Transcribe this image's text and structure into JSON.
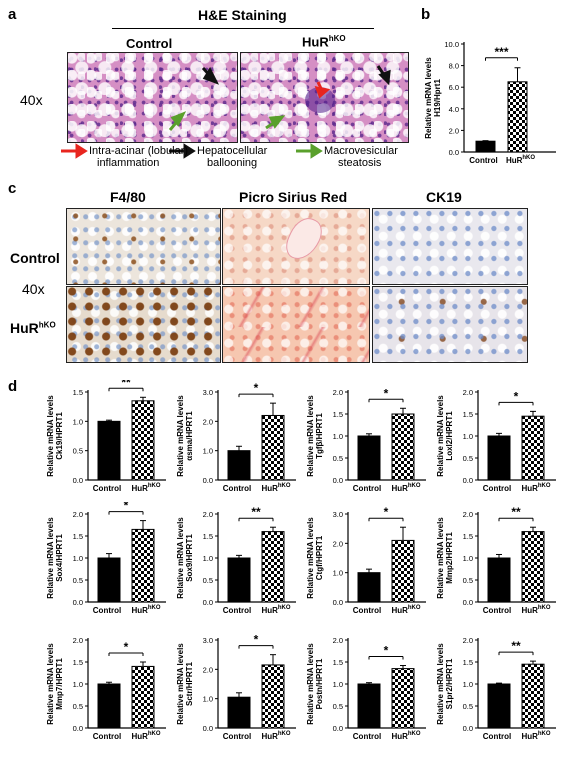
{
  "panels": {
    "a": {
      "label": "a",
      "title": "H&E Staining",
      "col_control": "Control",
      "col_ko_base": "HuR",
      "col_ko_sup": "hKO",
      "magnification": "40x",
      "legend": [
        {
          "line1": "Intra-acinar (lobular)",
          "line2": "inflammation",
          "color": "#e8251f"
        },
        {
          "line1": "Hepatocellular",
          "line2": "ballooning",
          "color": "#111111"
        },
        {
          "line1": "Macrovesicular",
          "line2": "steatosis",
          "color": "#5aa02c"
        }
      ]
    },
    "b": {
      "label": "b"
    },
    "c": {
      "label": "c",
      "col1": "F4/80",
      "col2": "Picro Sirius Red",
      "col3": "CK19",
      "row_control": "Control",
      "row_ko_base": "HuR",
      "row_ko_sup": "hKO",
      "magnification": "40x"
    },
    "d": {
      "label": "d"
    }
  },
  "chart_data": [
    {
      "panel": "b",
      "type": "bar",
      "ylabel": "Relative mRNA levels H19/Hprt1",
      "categories": [
        "Control",
        "HuR hKO"
      ],
      "values": [
        1.0,
        6.5
      ],
      "errors": [
        0.05,
        1.3
      ],
      "ylim": [
        0,
        10
      ],
      "yticks": [
        "0.0",
        "2.0",
        "4.0",
        "6.0",
        "8.0",
        "10.0"
      ],
      "tickvals": [
        0,
        2,
        4,
        6,
        8,
        10
      ],
      "significance": "***"
    },
    {
      "panel": "d",
      "type": "bar",
      "ylabel": "Relative mRNA levels Ck19/HPRT1",
      "categories": [
        "Control",
        "HuR hKO"
      ],
      "values": [
        1.0,
        1.35
      ],
      "errors": [
        0.02,
        0.06
      ],
      "ylim": [
        0,
        1.5
      ],
      "yticks": [
        "0.0",
        "0.5",
        "1.0",
        "1.5"
      ],
      "tickvals": [
        0,
        0.5,
        1,
        1.5
      ],
      "significance": "**"
    },
    {
      "panel": "d",
      "type": "bar",
      "ylabel": "Relative mRNA levels αsma/HPRT1",
      "categories": [
        "Control",
        "HuR hKO"
      ],
      "values": [
        1.0,
        2.2
      ],
      "errors": [
        0.15,
        0.42
      ],
      "ylim": [
        0,
        3.0
      ],
      "yticks": [
        "0.0",
        "1.0",
        "2.0",
        "3.0"
      ],
      "tickvals": [
        0,
        1,
        2,
        3
      ],
      "significance": "*"
    },
    {
      "panel": "d",
      "type": "bar",
      "ylabel": "Relative mRNA levels Tgfβ/HPRT1",
      "categories": [
        "Control",
        "HuR hKO"
      ],
      "values": [
        1.0,
        1.5
      ],
      "errors": [
        0.05,
        0.13
      ],
      "ylim": [
        0,
        2.0
      ],
      "yticks": [
        "0.0",
        "0.5",
        "1.0",
        "1.5",
        "2.0"
      ],
      "tickvals": [
        0,
        0.5,
        1,
        1.5,
        2
      ],
      "significance": "*"
    },
    {
      "panel": "d",
      "type": "bar",
      "ylabel": "Relative mRNA levels Loxl2/HPRT1",
      "categories": [
        "Control",
        "HuR hKO"
      ],
      "values": [
        1.0,
        1.45
      ],
      "errors": [
        0.06,
        0.11
      ],
      "ylim": [
        0,
        2.0
      ],
      "yticks": [
        "0.0",
        "0.5",
        "1.0",
        "1.5",
        "2.0"
      ],
      "tickvals": [
        0,
        0.5,
        1,
        1.5,
        2
      ],
      "significance": "*"
    },
    {
      "panel": "d",
      "type": "bar",
      "ylabel": "Relative mRNA levels Sox4/HPRT1",
      "categories": [
        "Control",
        "HuR hKO"
      ],
      "values": [
        1.0,
        1.65
      ],
      "errors": [
        0.1,
        0.2
      ],
      "ylim": [
        0,
        2.0
      ],
      "yticks": [
        "0.0",
        "0.5",
        "1.0",
        "1.5",
        "2.0"
      ],
      "tickvals": [
        0,
        0.5,
        1,
        1.5,
        2
      ],
      "significance": "*"
    },
    {
      "panel": "d",
      "type": "bar",
      "ylabel": "Relative mRNA levels Sox9/HPRT1",
      "categories": [
        "Control",
        "HuR hKO"
      ],
      "values": [
        1.0,
        1.6
      ],
      "errors": [
        0.06,
        0.1
      ],
      "ylim": [
        0,
        2.0
      ],
      "yticks": [
        "0.0",
        "0.5",
        "1.0",
        "1.5",
        "2.0"
      ],
      "tickvals": [
        0,
        0.5,
        1,
        1.5,
        2
      ],
      "significance": "**"
    },
    {
      "panel": "d",
      "type": "bar",
      "ylabel": "Relative mRNA levels Ctgf/HPRT1",
      "categories": [
        "Control",
        "HuR hKO"
      ],
      "values": [
        1.0,
        2.1
      ],
      "errors": [
        0.12,
        0.45
      ],
      "ylim": [
        0,
        3.0
      ],
      "yticks": [
        "0.0",
        "1.0",
        "2.0",
        "3.0"
      ],
      "tickvals": [
        0,
        1,
        2,
        3
      ],
      "significance": "*"
    },
    {
      "panel": "d",
      "type": "bar",
      "ylabel": "Relative mRNA levels Mmp2/HPRT1",
      "categories": [
        "Control",
        "HuR hKO"
      ],
      "values": [
        1.0,
        1.6
      ],
      "errors": [
        0.08,
        0.1
      ],
      "ylim": [
        0,
        2.0
      ],
      "yticks": [
        "0.0",
        "0.5",
        "1.0",
        "1.5",
        "2.0"
      ],
      "tickvals": [
        0,
        0.5,
        1,
        1.5,
        2
      ],
      "significance": "**"
    },
    {
      "panel": "d",
      "type": "bar",
      "ylabel": "Relative mRNA levels Mmp7/HPRT1",
      "categories": [
        "Control",
        "HuR hKO"
      ],
      "values": [
        1.0,
        1.4
      ],
      "errors": [
        0.04,
        0.1
      ],
      "ylim": [
        0,
        2.0
      ],
      "yticks": [
        "0.0",
        "0.5",
        "1.0",
        "1.5",
        "2.0"
      ],
      "tickvals": [
        0,
        0.5,
        1,
        1.5,
        2
      ],
      "significance": "*"
    },
    {
      "panel": "d",
      "type": "bar",
      "ylabel": "Relative mRNA levels Sctr/HPRT1",
      "categories": [
        "Control",
        "HuR hKO"
      ],
      "values": [
        1.05,
        2.15
      ],
      "errors": [
        0.15,
        0.35
      ],
      "ylim": [
        0,
        3.0
      ],
      "yticks": [
        "0.0",
        "1.0",
        "2.0",
        "3.0"
      ],
      "tickvals": [
        0,
        1,
        2,
        3
      ],
      "significance": "*"
    },
    {
      "panel": "d",
      "type": "bar",
      "ylabel": "Relative mRNA levels Postn/HPRT1",
      "categories": [
        "Control",
        "HuR hKO"
      ],
      "values": [
        1.0,
        1.35
      ],
      "errors": [
        0.03,
        0.07
      ],
      "ylim": [
        0,
        2.0
      ],
      "yticks": [
        "0.0",
        "0.5",
        "1.0",
        "1.5",
        "2.0"
      ],
      "tickvals": [
        0,
        0.5,
        1,
        1.5,
        2
      ],
      "significance": "*"
    },
    {
      "panel": "d",
      "type": "bar",
      "ylabel": "Relative mRNA levels S1pr2/HPRT1",
      "categories": [
        "Control",
        "HuR hKO"
      ],
      "values": [
        1.0,
        1.45
      ],
      "errors": [
        0.02,
        0.07
      ],
      "ylim": [
        0,
        2.0
      ],
      "yticks": [
        "0.0",
        "0.5",
        "1.0",
        "1.5",
        "2.0"
      ],
      "tickvals": [
        0,
        0.5,
        1,
        1.5,
        2
      ],
      "significance": "**"
    }
  ],
  "colors": {
    "control_bar": "#000000",
    "ko_pattern": "checkerboard",
    "inflammation_arrow": "#e8251f",
    "ballooning_arrow": "#111111",
    "steatosis_arrow": "#5aa02c"
  }
}
